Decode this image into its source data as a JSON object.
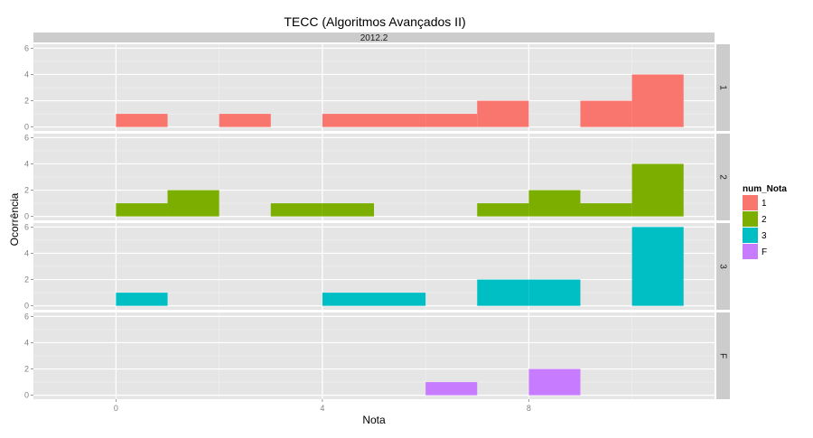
{
  "chart_data": {
    "type": "bar",
    "subtype": "faceted-histogram",
    "title": "TECC (Algoritmos Avançados II)",
    "column_facet": "2012.2",
    "xlabel": "Nota",
    "ylabel": "Ocorrência",
    "xlim": [
      -1.6,
      11.6
    ],
    "ylim": [
      -0.3,
      6.3
    ],
    "x_ticks": [
      0,
      4,
      8
    ],
    "y_ticks": [
      0,
      2,
      4,
      6
    ],
    "bin_width": 1,
    "grid": true,
    "legend": {
      "title": "num_Nota",
      "position": "right",
      "entries": [
        {
          "label": "1",
          "color": "#F8766D"
        },
        {
          "label": "2",
          "color": "#7CAE00"
        },
        {
          "label": "3",
          "color": "#00BFC4"
        },
        {
          "label": "F",
          "color": "#C77CFF"
        }
      ]
    },
    "facets": [
      {
        "label": "1",
        "color": "#F8766D",
        "bins": [
          {
            "x": 0,
            "count": 1
          },
          {
            "x": 2,
            "count": 1
          },
          {
            "x": 4,
            "count": 1
          },
          {
            "x": 5,
            "count": 1
          },
          {
            "x": 6,
            "count": 1
          },
          {
            "x": 7,
            "count": 2
          },
          {
            "x": 9,
            "count": 2
          },
          {
            "x": 10,
            "count": 4
          }
        ]
      },
      {
        "label": "2",
        "color": "#7CAE00",
        "bins": [
          {
            "x": 0,
            "count": 1
          },
          {
            "x": 1,
            "count": 2
          },
          {
            "x": 3,
            "count": 1
          },
          {
            "x": 4,
            "count": 1
          },
          {
            "x": 7,
            "count": 1
          },
          {
            "x": 8,
            "count": 2
          },
          {
            "x": 9,
            "count": 1
          },
          {
            "x": 10,
            "count": 4
          }
        ]
      },
      {
        "label": "3",
        "color": "#00BFC4",
        "bins": [
          {
            "x": 0,
            "count": 1
          },
          {
            "x": 4,
            "count": 1
          },
          {
            "x": 5,
            "count": 1
          },
          {
            "x": 7,
            "count": 2
          },
          {
            "x": 8,
            "count": 2
          },
          {
            "x": 10,
            "count": 6
          }
        ]
      },
      {
        "label": "F",
        "color": "#C77CFF",
        "bins": [
          {
            "x": 6,
            "count": 1
          },
          {
            "x": 8,
            "count": 2
          }
        ]
      }
    ]
  }
}
